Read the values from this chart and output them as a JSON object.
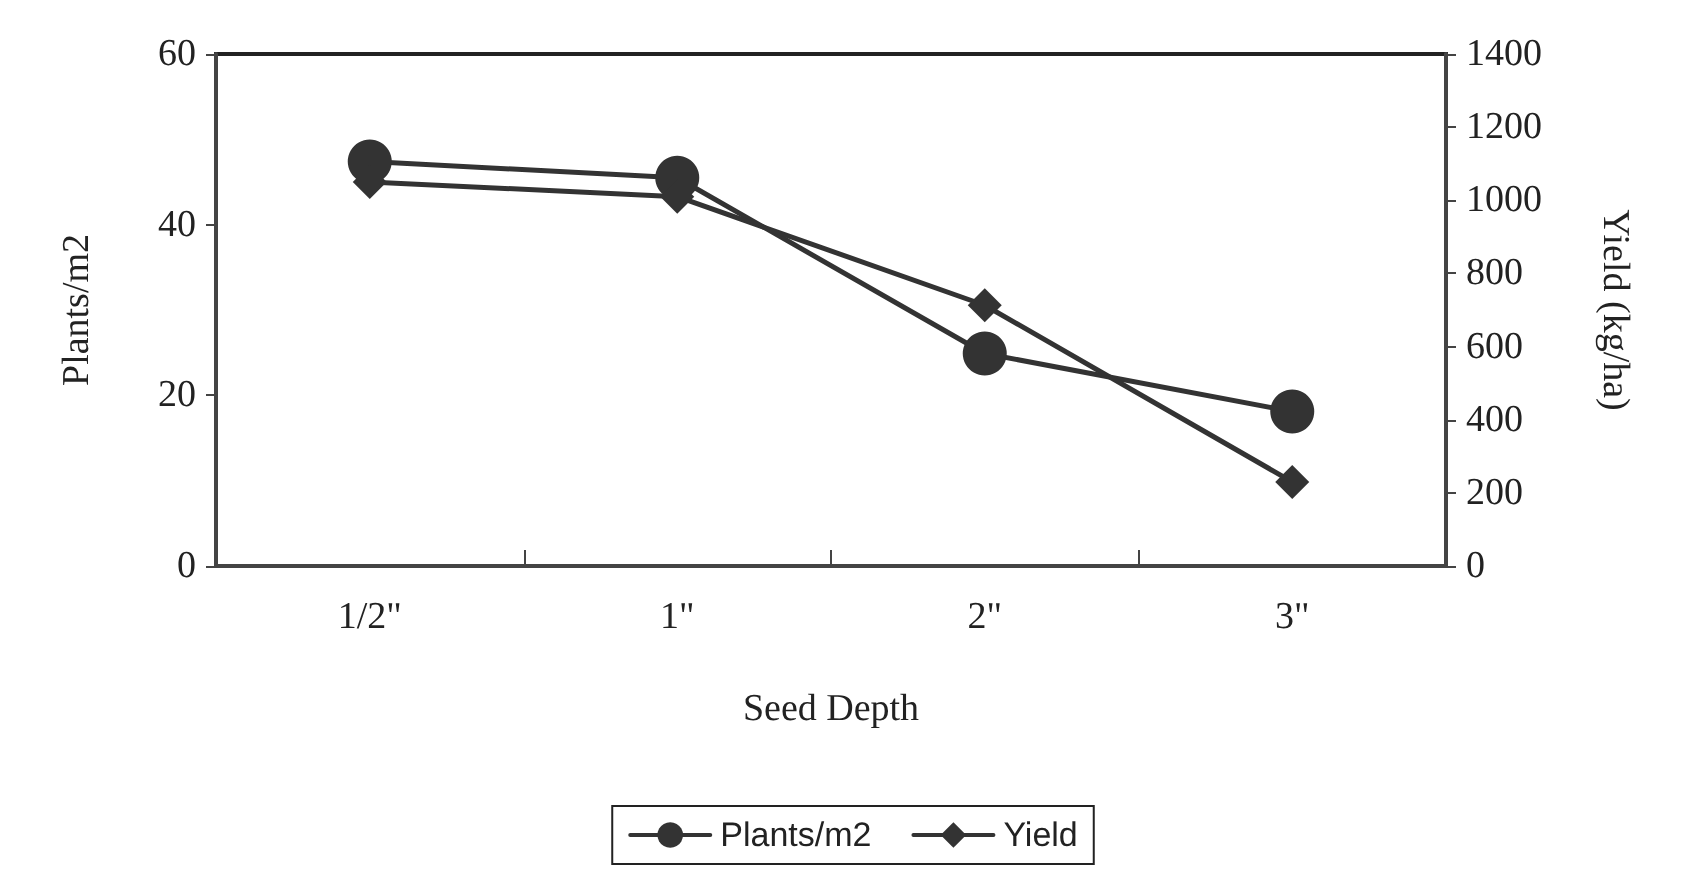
{
  "chart_data": {
    "type": "line",
    "xlabel": "Seed Depth",
    "ylabel": "Plants/m2",
    "y2label": "Yield (kg/ha)",
    "categories": [
      "1/2\"",
      "1\"",
      "2\"",
      "3\""
    ],
    "series": [
      {
        "name": "Plants/m2",
        "color": "#333333",
        "marker": "circle",
        "values": [
          47.4,
          45.5,
          24.9,
          18.1
        ]
      },
      {
        "name": "Yield",
        "color": "#333333",
        "marker": "diamond",
        "axis": "y2",
        "values": [
          1050,
          1010,
          713,
          230
        ]
      }
    ],
    "ylim": [
      0,
      60
    ],
    "yticks": [
      0,
      20,
      40,
      60
    ],
    "y2lim": [
      0,
      1400
    ],
    "y2ticks": [
      0,
      200,
      400,
      600,
      800,
      1000,
      1200,
      1400
    ],
    "grid": false,
    "legend": "bottom",
    "line_style": "solid"
  }
}
